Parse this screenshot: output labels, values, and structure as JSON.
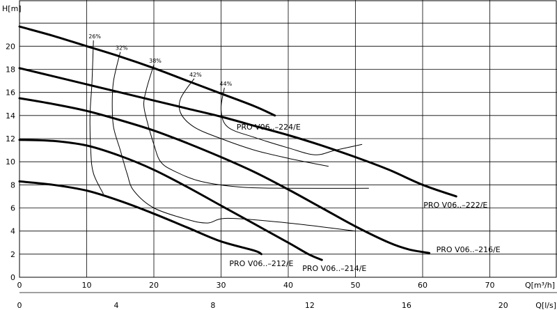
{
  "chart_data": {
    "type": "line",
    "x_primary": {
      "label": "Q[m³/h]",
      "range": [
        0,
        80
      ],
      "ticks": [
        0,
        10,
        20,
        30,
        40,
        50,
        60,
        70
      ]
    },
    "x_secondary": {
      "label": "Q[l/s]",
      "ticks": [
        0,
        4,
        8,
        12,
        16,
        20
      ]
    },
    "y": {
      "label": "H[m]",
      "range": [
        0,
        24
      ],
      "ticks": [
        0,
        2,
        4,
        6,
        8,
        10,
        12,
        14,
        16,
        18,
        20
      ],
      "grid": "vertical lines every 10 m³/h, horizontal lines every 2 m"
    },
    "series": [
      {
        "name": "PRO V06..–224/E",
        "points": [
          [
            0,
            21.7
          ],
          [
            5,
            20.9
          ],
          [
            10,
            20.0
          ],
          [
            15,
            19.1
          ],
          [
            20,
            18.1
          ],
          [
            25,
            17.0
          ],
          [
            30,
            15.9
          ],
          [
            35,
            14.8
          ],
          [
            38,
            14.0
          ]
        ]
      },
      {
        "name": "PRO V06..–222/E",
        "points": [
          [
            0,
            18.1
          ],
          [
            5,
            17.4
          ],
          [
            10,
            16.7
          ],
          [
            15,
            16.0
          ],
          [
            20,
            15.3
          ],
          [
            25,
            14.6
          ],
          [
            30,
            13.9
          ],
          [
            35,
            13.1
          ],
          [
            40,
            12.3
          ],
          [
            45,
            11.4
          ],
          [
            50,
            10.4
          ],
          [
            55,
            9.3
          ],
          [
            60,
            8.0
          ],
          [
            65,
            7.0
          ]
        ]
      },
      {
        "name": "PRO V06..–216/E",
        "points": [
          [
            0,
            15.5
          ],
          [
            5,
            15.0
          ],
          [
            10,
            14.4
          ],
          [
            15,
            13.6
          ],
          [
            20,
            12.7
          ],
          [
            25,
            11.6
          ],
          [
            30,
            10.4
          ],
          [
            35,
            9.1
          ],
          [
            40,
            7.6
          ],
          [
            45,
            6.0
          ],
          [
            50,
            4.4
          ],
          [
            55,
            3.0
          ],
          [
            58,
            2.4
          ],
          [
            61,
            2.1
          ]
        ]
      },
      {
        "name": "PRO V06..–214/E",
        "points": [
          [
            0,
            11.9
          ],
          [
            5,
            11.8
          ],
          [
            10,
            11.4
          ],
          [
            15,
            10.5
          ],
          [
            20,
            9.3
          ],
          [
            25,
            7.8
          ],
          [
            30,
            6.2
          ],
          [
            35,
            4.6
          ],
          [
            40,
            3.0
          ],
          [
            43,
            2.0
          ],
          [
            45,
            1.5
          ]
        ]
      },
      {
        "name": "PRO V06..–212/E",
        "points": [
          [
            0,
            8.3
          ],
          [
            5,
            8.0
          ],
          [
            10,
            7.5
          ],
          [
            15,
            6.6
          ],
          [
            20,
            5.5
          ],
          [
            25,
            4.3
          ],
          [
            30,
            3.1
          ],
          [
            35,
            2.3
          ],
          [
            36,
            2.0
          ]
        ]
      }
    ],
    "efficiency_lines": [
      {
        "name": "26%",
        "points": [
          [
            11,
            20.5
          ],
          [
            10.8,
            17
          ],
          [
            10.5,
            14
          ],
          [
            10.6,
            11
          ],
          [
            11,
            9
          ],
          [
            12.5,
            7.2
          ]
        ]
      },
      {
        "name": "32%",
        "points": [
          [
            15,
            19.5
          ],
          [
            14,
            17
          ],
          [
            13.8,
            15
          ],
          [
            14,
            13
          ],
          [
            15,
            11
          ],
          [
            16,
            9
          ],
          [
            17,
            7.5
          ],
          [
            20,
            6
          ],
          [
            25,
            5
          ],
          [
            28,
            4.7
          ],
          [
            31,
            5.1
          ],
          [
            40,
            4.7
          ],
          [
            50,
            4.0
          ]
        ]
      },
      {
        "name": "38%",
        "points": [
          [
            20,
            18.4
          ],
          [
            19,
            16.5
          ],
          [
            18.5,
            15
          ],
          [
            19,
            13.5
          ],
          [
            20,
            11.5
          ],
          [
            21,
            10
          ],
          [
            23,
            9.2
          ],
          [
            27,
            8.3
          ],
          [
            33,
            7.8
          ],
          [
            40,
            7.7
          ],
          [
            52,
            7.7
          ]
        ]
      },
      {
        "name": "42%",
        "points": [
          [
            26,
            17.2
          ],
          [
            24,
            15.5
          ],
          [
            24,
            14.2
          ],
          [
            26,
            13
          ],
          [
            30,
            12
          ],
          [
            35,
            11
          ],
          [
            40,
            10.3
          ],
          [
            46,
            9.6
          ]
        ]
      },
      {
        "name": "44%",
        "points": [
          [
            30.5,
            16.4
          ],
          [
            30,
            14.5
          ],
          [
            31,
            13
          ],
          [
            35,
            12.1
          ],
          [
            40,
            11.2
          ],
          [
            44,
            10.6
          ],
          [
            47,
            11
          ],
          [
            51,
            11.5
          ]
        ]
      }
    ]
  },
  "labels": {
    "y_axis": "H[m]",
    "x_axis_primary": "Q[m³/h]",
    "x_axis_secondary": "Q[l/s]"
  }
}
